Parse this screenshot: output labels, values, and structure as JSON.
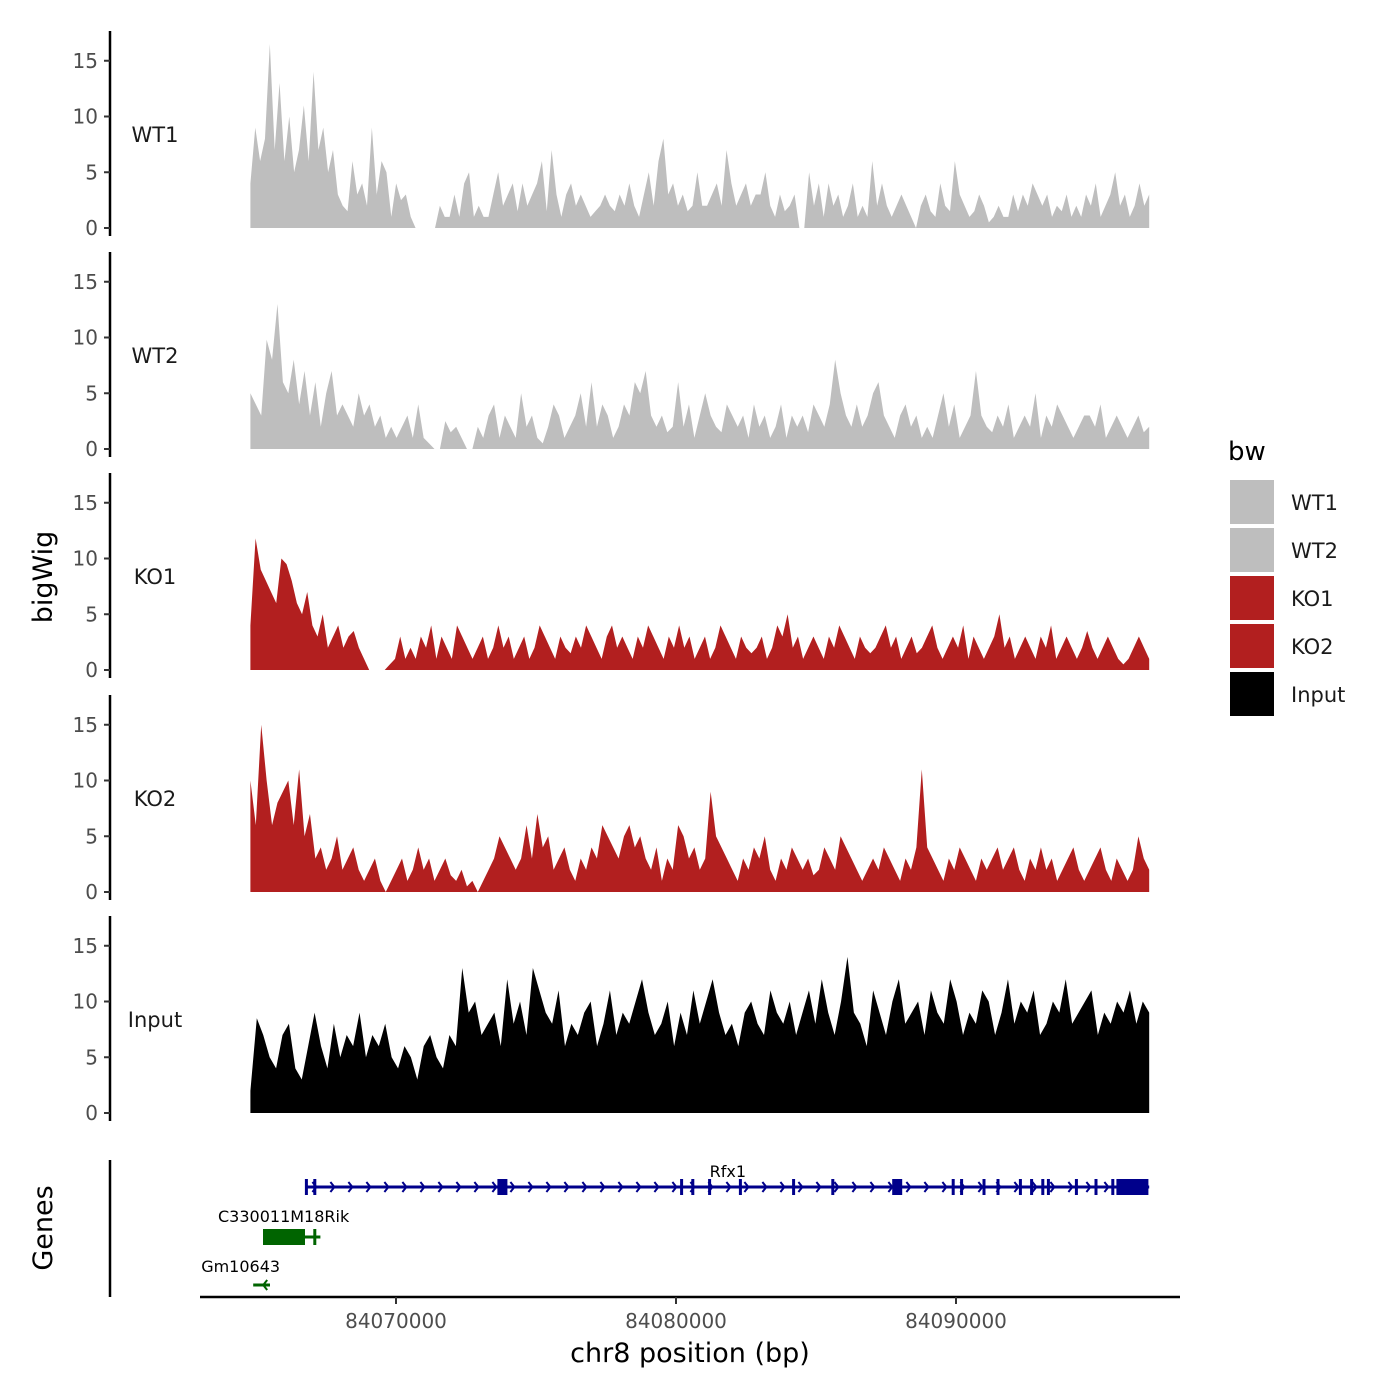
{
  "chart_data": {
    "type": "area",
    "title": "",
    "ylabel": "bigWig",
    "xlabel": "chr8 position (bp)",
    "ylim": [
      0,
      17
    ],
    "y_ticks": [
      0,
      5,
      10,
      15
    ],
    "xlim": [
      84063000,
      84098000
    ],
    "x_range_data": [
      84064800,
      84096900
    ],
    "x_ticks": [
      84070000,
      84080000,
      84090000
    ],
    "x_tick_labels": [
      "84070000",
      "84080000",
      "84090000"
    ],
    "legend": {
      "title": "bw",
      "placement": "right",
      "entries": [
        {
          "label": "WT1",
          "color": "#bebebe"
        },
        {
          "label": "WT2",
          "color": "#bebebe"
        },
        {
          "label": "KO1",
          "color": "#b21f1f"
        },
        {
          "label": "KO2",
          "color": "#b21f1f"
        },
        {
          "label": "Input",
          "color": "#000000"
        }
      ]
    },
    "series": [
      {
        "name": "WT1",
        "color": "#bebebe",
        "values": [
          4,
          9,
          6,
          8,
          16.5,
          7,
          13,
          6,
          10,
          5,
          7,
          11,
          6,
          14,
          7,
          9,
          5,
          7,
          3,
          2,
          1.5,
          6,
          3,
          4,
          2,
          9,
          3,
          6,
          5,
          1,
          4,
          2.5,
          3,
          1,
          0,
          0,
          0,
          0,
          0,
          2,
          1,
          1,
          3,
          1,
          4,
          5,
          1,
          2,
          1,
          1,
          3,
          5,
          2,
          3,
          4,
          1.5,
          4,
          2,
          3,
          4,
          6,
          1.5,
          7,
          3,
          1,
          3,
          4,
          2,
          3,
          2,
          1,
          1.5,
          2,
          3,
          2,
          1.5,
          3,
          2,
          4,
          2,
          1,
          3,
          5,
          2,
          6,
          8,
          3,
          4,
          2,
          3,
          1.5,
          2,
          5,
          2,
          2,
          3,
          4,
          2,
          7,
          4,
          2,
          3,
          4,
          2,
          3,
          3,
          5,
          2,
          1,
          3,
          1.5,
          2,
          3,
          0,
          0,
          5,
          2,
          4,
          1,
          4,
          2,
          3,
          1,
          2,
          4,
          1,
          2,
          1,
          6,
          2,
          4,
          2,
          1,
          2,
          3,
          2,
          1,
          0,
          2,
          3,
          1.5,
          1,
          4,
          2,
          1.5,
          6,
          3,
          2,
          1,
          1.5,
          3,
          2,
          0.5,
          1,
          2,
          1,
          1,
          3,
          1.5,
          3,
          2,
          4,
          3,
          2,
          3,
          1,
          2,
          1.5,
          3,
          1,
          2,
          1,
          3,
          2,
          4,
          1,
          2,
          3,
          5,
          2,
          3,
          1,
          2,
          4,
          2,
          3
        ]
      },
      {
        "name": "WT2",
        "color": "#bebebe",
        "values": [
          5,
          4,
          3,
          9.8,
          8,
          13,
          6,
          5,
          8,
          4,
          7,
          3,
          6,
          2,
          5,
          7,
          3,
          4,
          3,
          2,
          5,
          3,
          4,
          2,
          3,
          1,
          2,
          1,
          2,
          3,
          1,
          4,
          1,
          0.5,
          0,
          0,
          2.5,
          1.5,
          2,
          1,
          0,
          0,
          2,
          1,
          3,
          4,
          1,
          3,
          2,
          1,
          5,
          2,
          3,
          1,
          0.5,
          2,
          4,
          3,
          1,
          2,
          3,
          5,
          2,
          6,
          2,
          4,
          3,
          1,
          2,
          4,
          3,
          6,
          5,
          7,
          3,
          2,
          3,
          1.5,
          2,
          6,
          2,
          4,
          1,
          3,
          5,
          3,
          2,
          1.5,
          4,
          3,
          2,
          3,
          1,
          4,
          2,
          3,
          1,
          2,
          4,
          1,
          3,
          2,
          3,
          1.5,
          4,
          3,
          2,
          4,
          8,
          5,
          3,
          2,
          4,
          2,
          3,
          5,
          6,
          3,
          2,
          1,
          3,
          4,
          2,
          3,
          1,
          2,
          1,
          3,
          5,
          2,
          4,
          1,
          2,
          3,
          7,
          3,
          2,
          1.5,
          3,
          2,
          4,
          1,
          2,
          3,
          2,
          5,
          1,
          3,
          2,
          4,
          3,
          2,
          1,
          2,
          3,
          3,
          2,
          4,
          1,
          2,
          3,
          2,
          1,
          2,
          3,
          1.5,
          2
        ]
      },
      {
        "name": "KO1",
        "color": "#b21f1f",
        "values": [
          4,
          11.8,
          9,
          8,
          7,
          6,
          10,
          9.5,
          8,
          6,
          5,
          7,
          4,
          3,
          5,
          2,
          3,
          4,
          2,
          3,
          3.5,
          2,
          1,
          0,
          0,
          0,
          0,
          0.5,
          1,
          3,
          1,
          2,
          1,
          3,
          2,
          4,
          1,
          3,
          2,
          1,
          4,
          3,
          2,
          1,
          2,
          3,
          1,
          2,
          4,
          2,
          3,
          1,
          2,
          3,
          1,
          2,
          4,
          3,
          2,
          1,
          3,
          2,
          1.5,
          3,
          2,
          4,
          3,
          2,
          1,
          3,
          4,
          2,
          3,
          2,
          1,
          3,
          2,
          4,
          3,
          2,
          1,
          3,
          2,
          4,
          2,
          3,
          1,
          2,
          3,
          1,
          2,
          4,
          3,
          2,
          1,
          3,
          2,
          1.5,
          2,
          3,
          1,
          2,
          4,
          3,
          5,
          2,
          3,
          1,
          2,
          3,
          2,
          1,
          3,
          2,
          4,
          3,
          2,
          1,
          3,
          2,
          1.5,
          2,
          3,
          4,
          2,
          3,
          1,
          2,
          3,
          1.5,
          2,
          3,
          4,
          2,
          1,
          2,
          3,
          2,
          4,
          1,
          3,
          2,
          1,
          2,
          3,
          5,
          2,
          3,
          1,
          2,
          3,
          2,
          1,
          3,
          2,
          4,
          1,
          2,
          3,
          2,
          1,
          2,
          3.5,
          2,
          1,
          2,
          3,
          2,
          1,
          0.5,
          1,
          2,
          3,
          2,
          1
        ]
      },
      {
        "name": "KO2",
        "color": "#b21f1f",
        "values": [
          10,
          6,
          15,
          10,
          6,
          8,
          9,
          10,
          6,
          11,
          5,
          7,
          3,
          4,
          2,
          3,
          5,
          2,
          3,
          4,
          2,
          1,
          2,
          3,
          1,
          0,
          1,
          2,
          3,
          1,
          2,
          4,
          2,
          3,
          1,
          2,
          3,
          1.5,
          1,
          2,
          0.5,
          1,
          0,
          1,
          2,
          3,
          5,
          4,
          3,
          2,
          3,
          6,
          3,
          7,
          4,
          5,
          2,
          3,
          4,
          2,
          1,
          3,
          2,
          4,
          3,
          6,
          5,
          4,
          3,
          5,
          6,
          4,
          5,
          3,
          2,
          4,
          1,
          3,
          2,
          6,
          5,
          3,
          4,
          2,
          3,
          9,
          5,
          4,
          3,
          2,
          1,
          3,
          2,
          4,
          3,
          5,
          2,
          1,
          3,
          2,
          4,
          3,
          2,
          3,
          1.5,
          2,
          4,
          3,
          2,
          5,
          4,
          3,
          2,
          1,
          2,
          3,
          2,
          4,
          3,
          2,
          1,
          3,
          2,
          4,
          11,
          4,
          3,
          2,
          1,
          3,
          2,
          4,
          3,
          2,
          1,
          3,
          2,
          3,
          4,
          2,
          3,
          4,
          2,
          1,
          3,
          2,
          4,
          2,
          3,
          1,
          2,
          3,
          4,
          2,
          1,
          2,
          3,
          4,
          2,
          1,
          3,
          2,
          1,
          2,
          5,
          3,
          2
        ]
      },
      {
        "name": "Input",
        "color": "#000000",
        "values": [
          2,
          8.5,
          7,
          5,
          4,
          7,
          8,
          4,
          3,
          6,
          9,
          6,
          4,
          8,
          5,
          7,
          6,
          9,
          5,
          7,
          6,
          8,
          5,
          4,
          6,
          5,
          3,
          6,
          7,
          5,
          4,
          7,
          6,
          13,
          9,
          10,
          7,
          8,
          9,
          6,
          12,
          8,
          10,
          7,
          13,
          11,
          9,
          8,
          11,
          6,
          8,
          7,
          9,
          10,
          6,
          8,
          11,
          7,
          9,
          8,
          10,
          12,
          9,
          7,
          8,
          10,
          6,
          9,
          7,
          11,
          8,
          10,
          12,
          9,
          7,
          8,
          6,
          9,
          10,
          8,
          7,
          11,
          9,
          8,
          10,
          7,
          9,
          11,
          8,
          12,
          9,
          7,
          10,
          14,
          9,
          8,
          6,
          11,
          9,
          7,
          10,
          12,
          8,
          9,
          10,
          7,
          11,
          9,
          8,
          12,
          10,
          7,
          9,
          8,
          11,
          10,
          7,
          9,
          12,
          8,
          10,
          9,
          11,
          7,
          8,
          10,
          9,
          12,
          8,
          9,
          10,
          11,
          7,
          9,
          8,
          10,
          9,
          11,
          8,
          10,
          9
        ]
      }
    ]
  },
  "genes_panel": {
    "y_title": "Genes",
    "genes": [
      {
        "name": "Rfx1",
        "color": "#00008b",
        "start": 84066800,
        "end": 84096900,
        "strand": "+",
        "exons": [
          84066800,
          84067100,
          84073800,
          84080200,
          84080600,
          84081200,
          84082300,
          84084200,
          84085600,
          84087900,
          84089900,
          84090200,
          84091000,
          84091500,
          84092300,
          84092700,
          84093100,
          84093300,
          84094300,
          84095000,
          84095600,
          84096000
        ],
        "exon_big": [
          84073800,
          84087900,
          84096300
        ]
      },
      {
        "name": "C330011M18Rik",
        "color": "#006400",
        "start": 84065500,
        "end": 84067300,
        "strand": "+",
        "exons": [
          84067100
        ],
        "exon_big": [
          84066000
        ]
      },
      {
        "name": "Gm10643",
        "color": "#006400",
        "start": 84064900,
        "end": 84065500,
        "strand": "-",
        "exons": [],
        "exon_big": []
      }
    ]
  }
}
